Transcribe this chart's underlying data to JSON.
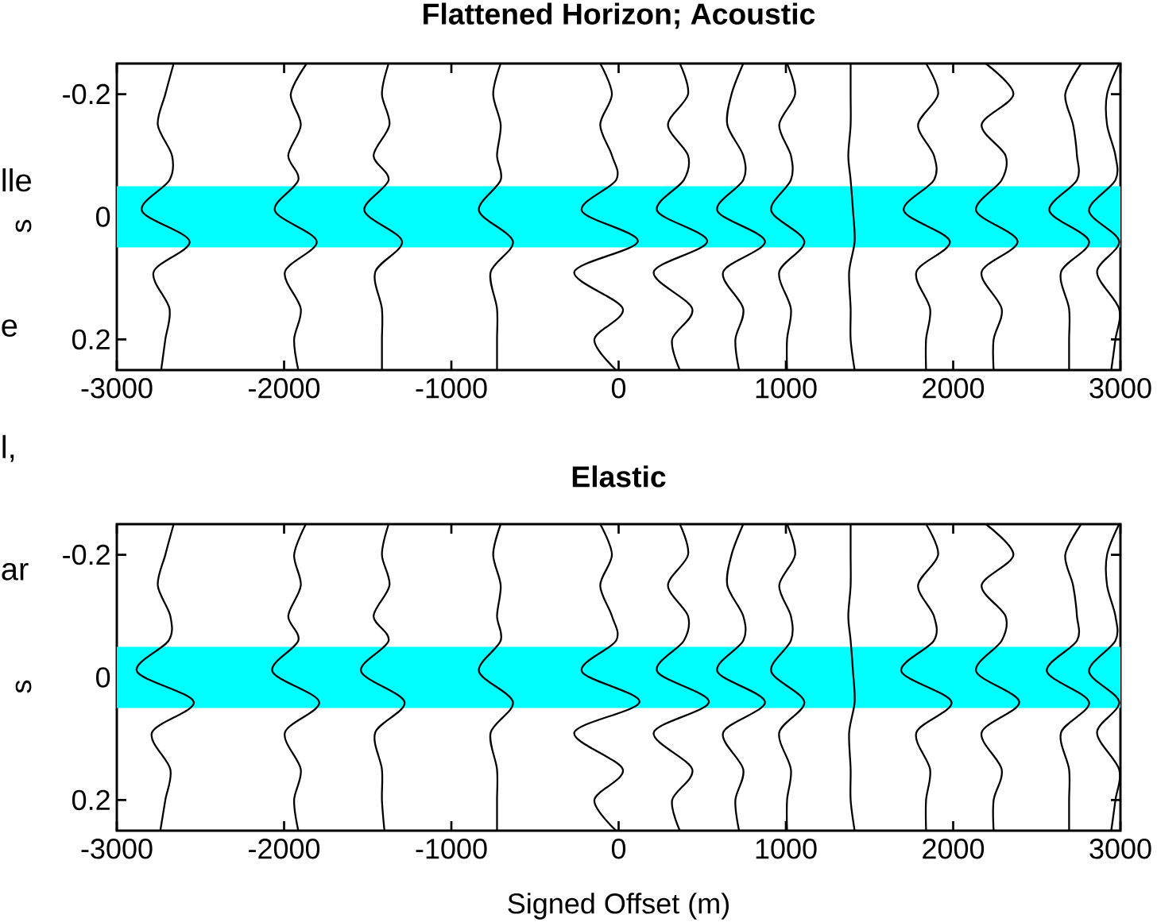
{
  "chart_data": [
    {
      "type": "line",
      "title": "Flattened Horizon; Acoustic",
      "ylabel": "s",
      "annotations": [
        "lle",
        "e",
        "l,"
      ],
      "marker": "none",
      "line_style": "solid",
      "xlim": [
        -3000,
        3000
      ],
      "ylim": [
        0.25,
        -0.25
      ],
      "xticks": [
        -3000,
        -2000,
        -1000,
        0,
        1000,
        2000,
        3000
      ],
      "yticks": [
        -0.2,
        0,
        0.2
      ],
      "bands": [
        {
          "axis": "y",
          "from": -0.05,
          "to": 0.05,
          "color": "#00ffff"
        }
      ],
      "series": [
        {
          "color": "#000000",
          "x": [
            -2660,
            -2710,
            -2755,
            -2670,
            -2685,
            -2850,
            -2565,
            -2780,
            -2685,
            -2710,
            -2735
          ],
          "values": [
            -0.25,
            -0.2,
            -0.15,
            -0.1,
            -0.06,
            -0.01,
            0.04,
            0.09,
            0.15,
            0.2,
            0.25
          ]
        },
        {
          "color": "#000000",
          "x": [
            -1865,
            -1960,
            -1900,
            -1975,
            -1915,
            -2055,
            -1805,
            -1995,
            -1900,
            -1940,
            -1915
          ],
          "values": [
            -0.25,
            -0.2,
            -0.15,
            -0.1,
            -0.06,
            -0.01,
            0.04,
            0.09,
            0.15,
            0.2,
            0.25
          ]
        },
        {
          "color": "#000000",
          "x": [
            -1375,
            -1415,
            -1370,
            -1465,
            -1375,
            -1520,
            -1295,
            -1455,
            -1415,
            -1415,
            -1415
          ],
          "values": [
            -0.25,
            -0.2,
            -0.15,
            -0.1,
            -0.06,
            -0.01,
            0.04,
            0.09,
            0.15,
            0.2,
            0.25
          ]
        },
        {
          "color": "#000000",
          "x": [
            -705,
            -750,
            -705,
            -727,
            -705,
            -835,
            -632,
            -765,
            -727,
            -727,
            -727
          ],
          "values": [
            -0.25,
            -0.2,
            -0.15,
            -0.1,
            -0.06,
            -0.01,
            0.04,
            0.09,
            0.15,
            0.2,
            0.25
          ]
        },
        {
          "color": "#000000",
          "x": [
            -110,
            -40,
            -110,
            -40,
            -15,
            -220,
            115,
            -265,
            25,
            -145,
            -15
          ],
          "values": [
            -0.25,
            -0.2,
            -0.15,
            -0.1,
            -0.06,
            -0.01,
            0.04,
            0.09,
            0.15,
            0.2,
            0.25
          ]
        },
        {
          "color": "#000000",
          "x": [
            366,
            415,
            295,
            415,
            390,
            230,
            530,
            210,
            440,
            320,
            366
          ],
          "values": [
            -0.25,
            -0.2,
            -0.15,
            -0.1,
            -0.06,
            -0.01,
            0.04,
            0.09,
            0.15,
            0.2,
            0.25
          ]
        },
        {
          "color": "#000000",
          "x": [
            745,
            675,
            650,
            745,
            745,
            590,
            875,
            625,
            745,
            698,
            720
          ],
          "values": [
            -0.25,
            -0.2,
            -0.15,
            -0.1,
            -0.06,
            -0.01,
            0.04,
            0.09,
            0.15,
            0.2,
            0.25
          ]
        },
        {
          "color": "#000000",
          "x": [
            1007,
            1055,
            960,
            1030,
            1030,
            912,
            1110,
            960,
            1030,
            1007,
            1007
          ],
          "values": [
            -0.25,
            -0.2,
            -0.15,
            -0.1,
            -0.06,
            -0.01,
            0.04,
            0.09,
            0.15,
            0.2,
            0.25
          ]
        },
        {
          "color": "#000000",
          "x": [
            1387,
            1387,
            1387,
            1373,
            1387,
            1401,
            1411,
            1378,
            1387,
            1387,
            1411
          ],
          "values": [
            -0.25,
            -0.2,
            -0.15,
            -0.1,
            -0.06,
            -0.01,
            0.04,
            0.09,
            0.15,
            0.2,
            0.25
          ]
        },
        {
          "color": "#000000",
          "x": [
            1838,
            1910,
            1790,
            1885,
            1885,
            1705,
            1980,
            1780,
            1862,
            1838,
            1838
          ],
          "values": [
            -0.25,
            -0.2,
            -0.15,
            -0.1,
            -0.06,
            -0.01,
            0.04,
            0.09,
            0.15,
            0.2,
            0.25
          ]
        },
        {
          "color": "#000000",
          "x": [
            2195,
            2360,
            2170,
            2313,
            2290,
            2137,
            2385,
            2170,
            2290,
            2242,
            2242
          ],
          "values": [
            -0.25,
            -0.2,
            -0.15,
            -0.1,
            -0.06,
            -0.01,
            0.04,
            0.09,
            0.15,
            0.2,
            0.25
          ]
        },
        {
          "color": "#000000",
          "x": [
            2765,
            2670,
            2717,
            2740,
            2740,
            2575,
            2812,
            2645,
            2693,
            2693,
            2693
          ],
          "values": [
            -0.25,
            -0.2,
            -0.15,
            -0.1,
            -0.06,
            -0.01,
            0.04,
            0.09,
            0.15,
            0.2,
            0.25
          ]
        },
        {
          "color": "#000000",
          "x": [
            2992,
            2920,
            2920,
            2970,
            2970,
            2812,
            2992,
            2860,
            2992,
            2970,
            2945
          ],
          "values": [
            -0.25,
            -0.2,
            -0.15,
            -0.1,
            -0.06,
            -0.01,
            0.04,
            0.09,
            0.15,
            0.2,
            0.25
          ]
        }
      ]
    },
    {
      "type": "line",
      "title": "Elastic",
      "xlabel": "Signed Offset (m)",
      "ylabel": "s",
      "annotations": [
        "ar"
      ],
      "marker": "none",
      "line_style": "solid",
      "xlim": [
        -3000,
        3000
      ],
      "ylim": [
        0.25,
        -0.25
      ],
      "xticks": [
        -3000,
        -2000,
        -1000,
        0,
        1000,
        2000,
        3000
      ],
      "yticks": [
        -0.2,
        0,
        0.2
      ],
      "bands": [
        {
          "axis": "y",
          "from": -0.05,
          "to": 0.05,
          "color": "#00ffff"
        }
      ],
      "series": [
        {
          "color": "#000000",
          "x": [
            -2660,
            -2710,
            -2755,
            -2680,
            -2690,
            -2880,
            -2540,
            -2790,
            -2680,
            -2710,
            -2740
          ],
          "values": [
            -0.25,
            -0.2,
            -0.15,
            -0.1,
            -0.06,
            -0.01,
            0.04,
            0.09,
            0.15,
            0.2,
            0.25
          ]
        },
        {
          "color": "#000000",
          "x": [
            -1870,
            -1940,
            -1900,
            -1975,
            -1915,
            -2070,
            -1790,
            -1995,
            -1900,
            -1940,
            -1915
          ],
          "values": [
            -0.25,
            -0.2,
            -0.15,
            -0.1,
            -0.06,
            -0.01,
            0.04,
            0.09,
            0.15,
            0.2,
            0.25
          ]
        },
        {
          "color": "#000000",
          "x": [
            -1375,
            -1415,
            -1370,
            -1465,
            -1375,
            -1540,
            -1280,
            -1455,
            -1415,
            -1415,
            -1400
          ],
          "values": [
            -0.25,
            -0.2,
            -0.15,
            -0.1,
            -0.06,
            -0.01,
            0.04,
            0.09,
            0.15,
            0.2,
            0.25
          ]
        },
        {
          "color": "#000000",
          "x": [
            -705,
            -750,
            -705,
            -727,
            -705,
            -835,
            -632,
            -765,
            -727,
            -727,
            -727
          ],
          "values": [
            -0.25,
            -0.2,
            -0.15,
            -0.1,
            -0.06,
            -0.01,
            0.04,
            0.09,
            0.15,
            0.2,
            0.25
          ]
        },
        {
          "color": "#000000",
          "x": [
            -110,
            -40,
            -110,
            -40,
            -15,
            -220,
            125,
            -265,
            25,
            -145,
            -15
          ],
          "values": [
            -0.25,
            -0.2,
            -0.15,
            -0.1,
            -0.06,
            -0.01,
            0.04,
            0.09,
            0.15,
            0.2,
            0.25
          ]
        },
        {
          "color": "#000000",
          "x": [
            366,
            415,
            295,
            415,
            390,
            230,
            540,
            210,
            440,
            320,
            366
          ],
          "values": [
            -0.25,
            -0.2,
            -0.15,
            -0.1,
            -0.06,
            -0.01,
            0.04,
            0.09,
            0.15,
            0.2,
            0.25
          ]
        },
        {
          "color": "#000000",
          "x": [
            745,
            675,
            650,
            745,
            745,
            590,
            875,
            625,
            745,
            698,
            720
          ],
          "values": [
            -0.25,
            -0.2,
            -0.15,
            -0.1,
            -0.06,
            -0.01,
            0.04,
            0.09,
            0.15,
            0.2,
            0.25
          ]
        },
        {
          "color": "#000000",
          "x": [
            1007,
            1055,
            960,
            1030,
            1030,
            912,
            1110,
            960,
            1030,
            1007,
            1007
          ],
          "values": [
            -0.25,
            -0.2,
            -0.15,
            -0.1,
            -0.06,
            -0.01,
            0.04,
            0.09,
            0.15,
            0.2,
            0.25
          ]
        },
        {
          "color": "#000000",
          "x": [
            1387,
            1387,
            1387,
            1373,
            1387,
            1401,
            1411,
            1378,
            1387,
            1387,
            1411
          ],
          "values": [
            -0.25,
            -0.2,
            -0.15,
            -0.1,
            -0.06,
            -0.01,
            0.04,
            0.09,
            0.15,
            0.2,
            0.25
          ]
        },
        {
          "color": "#000000",
          "x": [
            1838,
            1910,
            1790,
            1885,
            1885,
            1690,
            1990,
            1780,
            1862,
            1838,
            1838
          ],
          "values": [
            -0.25,
            -0.2,
            -0.15,
            -0.1,
            -0.06,
            -0.01,
            0.04,
            0.09,
            0.15,
            0.2,
            0.25
          ]
        },
        {
          "color": "#000000",
          "x": [
            2195,
            2360,
            2170,
            2313,
            2290,
            2137,
            2395,
            2170,
            2290,
            2242,
            2242
          ],
          "values": [
            -0.25,
            -0.2,
            -0.15,
            -0.1,
            -0.06,
            -0.01,
            0.04,
            0.09,
            0.15,
            0.2,
            0.25
          ]
        },
        {
          "color": "#000000",
          "x": [
            2765,
            2670,
            2717,
            2740,
            2740,
            2560,
            2812,
            2645,
            2693,
            2693,
            2693
          ],
          "values": [
            -0.25,
            -0.2,
            -0.15,
            -0.1,
            -0.06,
            -0.01,
            0.04,
            0.09,
            0.15,
            0.2,
            0.25
          ]
        },
        {
          "color": "#000000",
          "x": [
            2992,
            2920,
            2920,
            2970,
            2970,
            2812,
            2992,
            2860,
            2992,
            2970,
            2945
          ],
          "values": [
            -0.25,
            -0.2,
            -0.15,
            -0.1,
            -0.06,
            -0.01,
            0.04,
            0.09,
            0.15,
            0.2,
            0.25
          ]
        }
      ]
    }
  ]
}
